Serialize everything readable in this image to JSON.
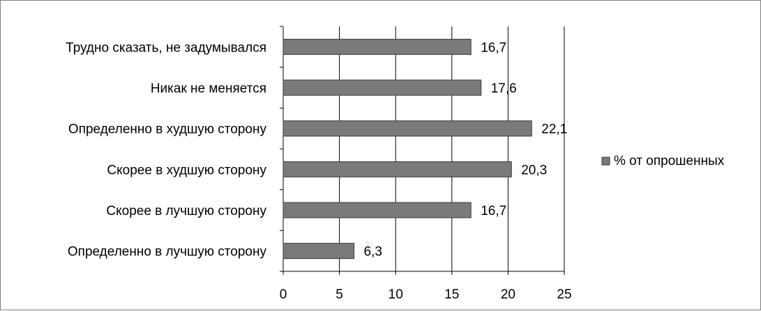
{
  "chart_data": {
    "type": "bar",
    "orientation": "horizontal",
    "categories": [
      "Трудно сказать, не задумывался",
      "Никак не меняется",
      "Определенно в худшую сторону",
      "Скорее в худшую сторону",
      "Скорее в лучшую сторону",
      "Определенно в лучшую сторону"
    ],
    "series": [
      {
        "name": "% от опрошенных",
        "values": [
          16.7,
          17.6,
          22.1,
          20.3,
          16.7,
          6.3
        ],
        "value_labels": [
          "16,7",
          "17,6",
          "22,1",
          "20,3",
          "16,7",
          "6,3"
        ]
      }
    ],
    "x_ticks": [
      "0",
      "5",
      "10",
      "15",
      "20",
      "25"
    ],
    "xlim": [
      0,
      25
    ],
    "grid": "vertical",
    "legend": "right",
    "colors": {
      "bar": "#7a7a7a",
      "bar_border": "#3a3a3a",
      "grid": "#000000",
      "frame": "#7f7f7f"
    }
  }
}
